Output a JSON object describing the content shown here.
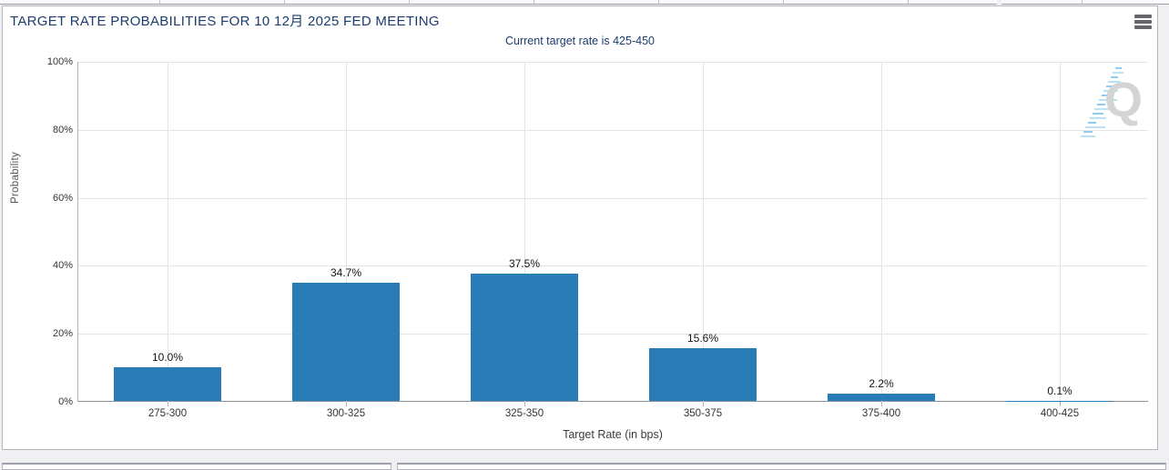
{
  "header": {
    "title": "TARGET RATE PROBABILITIES FOR 10 12月 2025 FED MEETING",
    "subtitle": "Current target rate is 425-450"
  },
  "icons": {
    "menu": "hamburger-menu",
    "watermark": "q-logo"
  },
  "watermark": {
    "letter": "Q"
  },
  "chart_data": {
    "type": "bar",
    "title": "TARGET RATE PROBABILITIES FOR 10 12月 2025 FED MEETING",
    "subtitle": "Current target rate is 425-450",
    "categories": [
      "275-300",
      "300-325",
      "325-350",
      "350-375",
      "375-400",
      "400-425"
    ],
    "values": [
      10.0,
      34.7,
      37.5,
      15.6,
      2.2,
      0.1
    ],
    "bar_labels": [
      "10.0%",
      "34.7%",
      "37.5%",
      "15.6%",
      "2.2%",
      "0.1%"
    ],
    "xlabel": "Target Rate (in bps)",
    "ylabel": "Probability",
    "ylim": [
      0,
      100
    ],
    "yticks": [
      "0%",
      "20%",
      "40%",
      "60%",
      "80%",
      "100%"
    ],
    "grid": true,
    "legend": "none",
    "bar_color": "#2a7cb7",
    "accent_color": "#1c3c6e"
  }
}
